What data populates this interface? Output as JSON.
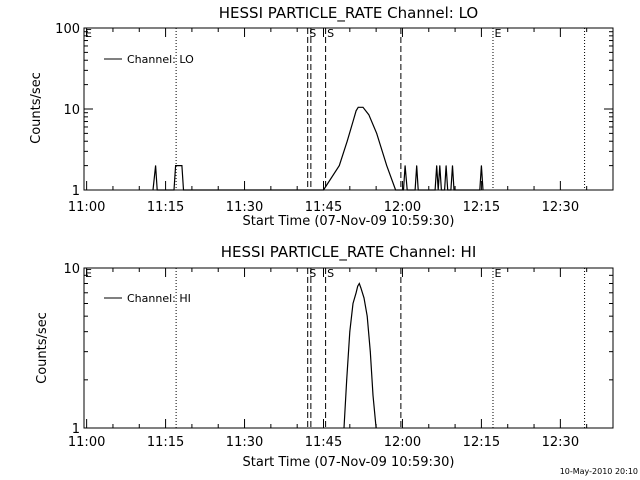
{
  "footer_stamp": "10-May-2010 20:10",
  "chart_data": [
    {
      "type": "line",
      "title": "HESSI PARTICLE_RATE Channel: LO",
      "xlabel": "Start Time (07-Nov-09 10:59:30)",
      "ylabel": "Counts/sec",
      "xlim": [
        "10:59:30",
        "12:40"
      ],
      "ylim": [
        1,
        100
      ],
      "yscale": "log",
      "x_tick_labels": [
        "11:00",
        "11:15",
        "11:30",
        "11:45",
        "12:00",
        "12:15",
        "12:30"
      ],
      "y_tick_labels": [
        "1",
        "10",
        "100"
      ],
      "legend": {
        "position": "top-left",
        "entries": [
          "Channel: LO"
        ]
      },
      "markers": [
        {
          "label": "E",
          "time": "10:59:30",
          "style": "dotted"
        },
        {
          "label": "",
          "time": "11:17",
          "style": "dotted"
        },
        {
          "label": "S",
          "time": "11:42",
          "style": "dashed"
        },
        {
          "label": "",
          "time": "11:42.6",
          "style": "dashed"
        },
        {
          "label": "S",
          "time": "11:45.4",
          "style": "dashed"
        },
        {
          "label": "",
          "time": "11:59.7",
          "style": "dashed"
        },
        {
          "label": "E",
          "time": "12:17.2",
          "style": "dotted"
        },
        {
          "label": "",
          "time": "12:34.6",
          "style": "dotted"
        }
      ],
      "series": [
        {
          "name": "Channel: LO",
          "x": [
            "11:12.6",
            "11:13.1",
            "11:13.4",
            "11:16.6",
            "11:16.9",
            "11:17.5",
            "11:18.1",
            "11:18.4",
            "11:45.0",
            "11:48.0",
            "11:49.5",
            "11:50.6",
            "11:51.2",
            "11:51.6",
            "11:52.5",
            "11:53.6",
            "11:55.1",
            "11:57.0",
            "11:58.7",
            "12:00.2",
            "12:00.5",
            "12:00.9",
            "12:02.4",
            "12:02.7",
            "12:03.0",
            "12:06.2",
            "12:06.5",
            "12:06.8",
            "12:07.1",
            "12:07.4",
            "12:08.0",
            "12:08.3",
            "12:08.6",
            "12:09.2",
            "12:09.5",
            "12:09.8",
            "12:14.7",
            "12:15.0",
            "12:15.3"
          ],
          "values": [
            1,
            2,
            1,
            1,
            2,
            2,
            2,
            1,
            1,
            2,
            4,
            7,
            9.5,
            10.5,
            10.5,
            8.5,
            5,
            2,
            1,
            1,
            2,
            1,
            1,
            2,
            1,
            1,
            2,
            1,
            2,
            1,
            1,
            2,
            1,
            1,
            2,
            1,
            1,
            2,
            1
          ]
        }
      ]
    },
    {
      "type": "line",
      "title": "HESSI PARTICLE_RATE Channel: HI",
      "xlabel": "Start Time (07-Nov-09 10:59:30)",
      "ylabel": "Counts/sec",
      "xlim": [
        "10:59:30",
        "12:40"
      ],
      "ylim": [
        1,
        10
      ],
      "yscale": "log",
      "x_tick_labels": [
        "11:00",
        "11:15",
        "11:30",
        "11:45",
        "12:00",
        "12:15",
        "12:30"
      ],
      "y_tick_labels": [
        "1",
        "10"
      ],
      "legend": {
        "position": "top-left",
        "entries": [
          "Channel: HI"
        ]
      },
      "markers": [
        {
          "label": "E",
          "time": "10:59:30",
          "style": "dotted"
        },
        {
          "label": "",
          "time": "11:17",
          "style": "dotted"
        },
        {
          "label": "S",
          "time": "11:42",
          "style": "dashed"
        },
        {
          "label": "",
          "time": "11:42.6",
          "style": "dashed"
        },
        {
          "label": "S",
          "time": "11:45.4",
          "style": "dashed"
        },
        {
          "label": "",
          "time": "11:59.7",
          "style": "dashed"
        },
        {
          "label": "E",
          "time": "12:17.2",
          "style": "dotted"
        },
        {
          "label": "",
          "time": "12:34.6",
          "style": "dotted"
        }
      ],
      "series": [
        {
          "name": "Channel: HI",
          "x": [
            "11:48.9",
            "11:49.4",
            "11:50.0",
            "11:50.6",
            "11:51.2",
            "11:51.5",
            "11:51.8",
            "11:52.1",
            "11:52.7",
            "11:53.3",
            "11:53.9",
            "11:54.4",
            "11:55.0"
          ],
          "values": [
            1,
            2,
            4,
            6,
            7,
            7.7,
            8,
            7.5,
            6.5,
            5,
            3,
            1.6,
            1
          ]
        }
      ]
    }
  ]
}
